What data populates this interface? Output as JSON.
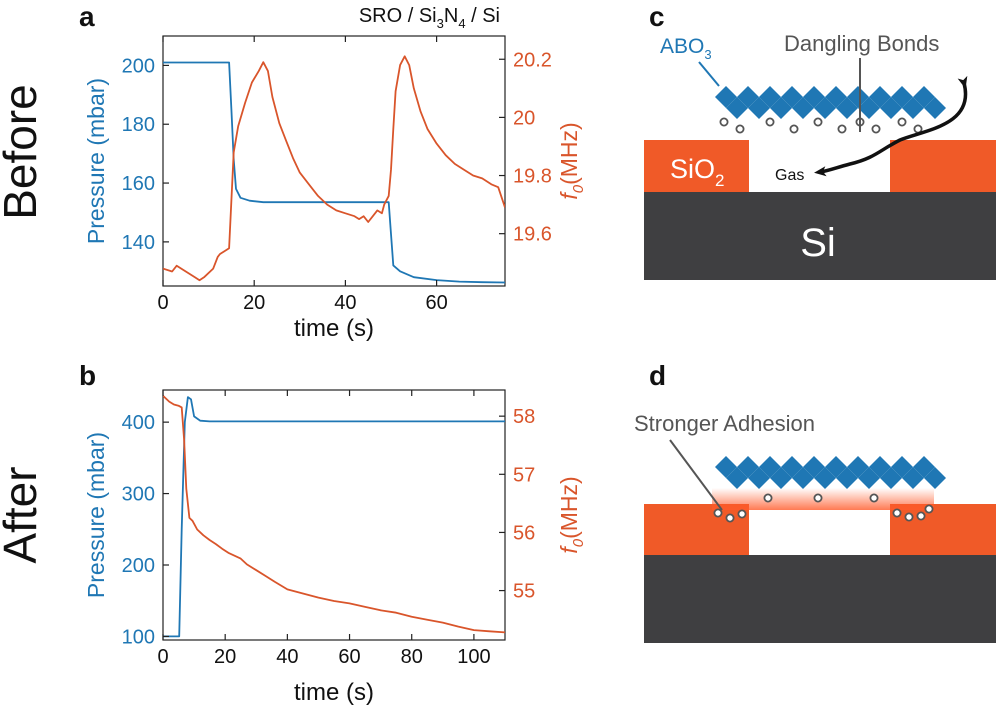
{
  "figure": {
    "row_label_top": "Before",
    "row_label_bottom": "After",
    "series_colors": {
      "pressure": "#1f77b4",
      "frequency": "#d9552b"
    }
  },
  "chart_data": [
    {
      "panel": "a",
      "type": "line",
      "title_parts": [
        "SRO / Si",
        "3",
        "N",
        "4",
        " / Si"
      ],
      "xlabel": "time (s)",
      "ylabel_left": "Pressure (mbar)",
      "ylabel_right_italic": "f",
      "ylabel_right_sub": "0",
      "ylabel_right_rest": "(MHz)",
      "xlim": [
        0,
        75
      ],
      "ylim_left": [
        125,
        210
      ],
      "ylim_right": [
        19.42,
        20.28
      ],
      "xticks": [
        0,
        20,
        40,
        60
      ],
      "yticks_left": [
        140,
        160,
        180,
        200
      ],
      "yticks_right": [
        19.6,
        19.8,
        20,
        20.2
      ],
      "ytick_labels_right": [
        "19.6",
        "19.8",
        "20",
        "20.2"
      ],
      "series": [
        {
          "name": "Pressure",
          "axis": "left",
          "color": "#1f77b4",
          "x": [
            0,
            14.5,
            15.0,
            15.5,
            16,
            17,
            19,
            22,
            25,
            49.5,
            49.9,
            50.5,
            52,
            55,
            60,
            65,
            70,
            75
          ],
          "y": [
            201,
            201,
            185,
            168,
            158,
            155,
            154,
            153.5,
            153.5,
            153.5,
            145,
            132,
            130,
            128,
            127,
            126.5,
            126.3,
            126.2
          ]
        },
        {
          "name": "f0",
          "axis": "right",
          "color": "#d9552b",
          "x": [
            0,
            2,
            3,
            5,
            7,
            8,
            9,
            11,
            12,
            12.5,
            13.5,
            14.5,
            15.5,
            16.5,
            18,
            19.5,
            21,
            22,
            23,
            24,
            25.5,
            27,
            28.5,
            30,
            32,
            34,
            36,
            38,
            40,
            42,
            43,
            44,
            45,
            46,
            47,
            48,
            48.5,
            49.5,
            50,
            50.5,
            51,
            52,
            53,
            54,
            55,
            56.5,
            58,
            60,
            62,
            64,
            66,
            68,
            70,
            72,
            73.5,
            75
          ],
          "y": [
            19.48,
            19.47,
            19.49,
            19.47,
            19.45,
            19.44,
            19.45,
            19.48,
            19.52,
            19.53,
            19.54,
            19.55,
            19.88,
            19.97,
            20.05,
            20.12,
            20.16,
            20.19,
            20.16,
            20.07,
            19.98,
            19.92,
            19.86,
            19.81,
            19.77,
            19.73,
            19.7,
            19.68,
            19.67,
            19.66,
            19.65,
            19.66,
            19.64,
            19.66,
            19.68,
            19.67,
            19.7,
            19.73,
            19.82,
            19.96,
            20.09,
            20.18,
            20.21,
            20.18,
            20.1,
            20.02,
            19.96,
            19.91,
            19.87,
            19.84,
            19.82,
            19.8,
            19.79,
            19.77,
            19.76,
            19.69
          ]
        }
      ]
    },
    {
      "panel": "b",
      "type": "line",
      "xlabel": "time (s)",
      "ylabel_left": "Pressure (mbar)",
      "ylabel_right_italic": "f",
      "ylabel_right_sub": "0",
      "ylabel_right_rest": "(MHz)",
      "xlim": [
        0,
        110
      ],
      "ylim_left": [
        95,
        445
      ],
      "ylim_right": [
        54.15,
        58.45
      ],
      "xticks": [
        0,
        20,
        40,
        60,
        80,
        100
      ],
      "yticks_left": [
        100,
        200,
        300,
        400
      ],
      "yticks_right": [
        55,
        56,
        57,
        58
      ],
      "ytick_labels_right": [
        "55",
        "56",
        "57",
        "58"
      ],
      "series": [
        {
          "name": "Pressure",
          "axis": "left",
          "color": "#1f77b4",
          "x": [
            0,
            4.5,
            5.2,
            6,
            7,
            8,
            9,
            10,
            12,
            15,
            30,
            60,
            90,
            110
          ],
          "y": [
            100,
            100,
            100,
            250,
            400,
            435,
            432,
            408,
            402,
            401,
            401,
            401,
            401,
            401
          ],
          "ylim": [
            95,
            445
          ]
        },
        {
          "name": "f0",
          "axis": "right",
          "color": "#d9552b",
          "x": [
            0,
            2,
            3.5,
            5,
            6,
            6.8,
            7.5,
            8.5,
            9.5,
            11,
            13,
            15,
            17,
            19,
            21,
            23,
            25,
            27,
            30,
            33,
            36,
            40,
            45,
            50,
            55,
            60,
            65,
            70,
            75,
            80,
            85,
            90,
            95,
            100,
            105,
            110
          ],
          "y": [
            58.35,
            58.25,
            58.2,
            58.18,
            58.15,
            57.6,
            56.75,
            56.25,
            56.2,
            56.05,
            55.95,
            55.87,
            55.8,
            55.72,
            55.65,
            55.6,
            55.55,
            55.45,
            55.35,
            55.25,
            55.15,
            55.02,
            54.95,
            54.88,
            54.82,
            54.78,
            54.72,
            54.66,
            54.62,
            54.55,
            54.5,
            54.45,
            54.38,
            54.32,
            54.3,
            54.28
          ],
          "ylim": [
            54.15,
            58.45
          ]
        }
      ]
    }
  ],
  "schematics": {
    "c": {
      "panel": "c",
      "abo3_label": "ABO",
      "abo3_sub": "3",
      "dangling_label": "Dangling Bonds",
      "sio2_label": "SiO",
      "sio2_sub": "2",
      "gas_label": "Gas",
      "si_label": "Si"
    },
    "d": {
      "panel": "d",
      "adhesion_label": "Stronger Adhesion"
    }
  }
}
